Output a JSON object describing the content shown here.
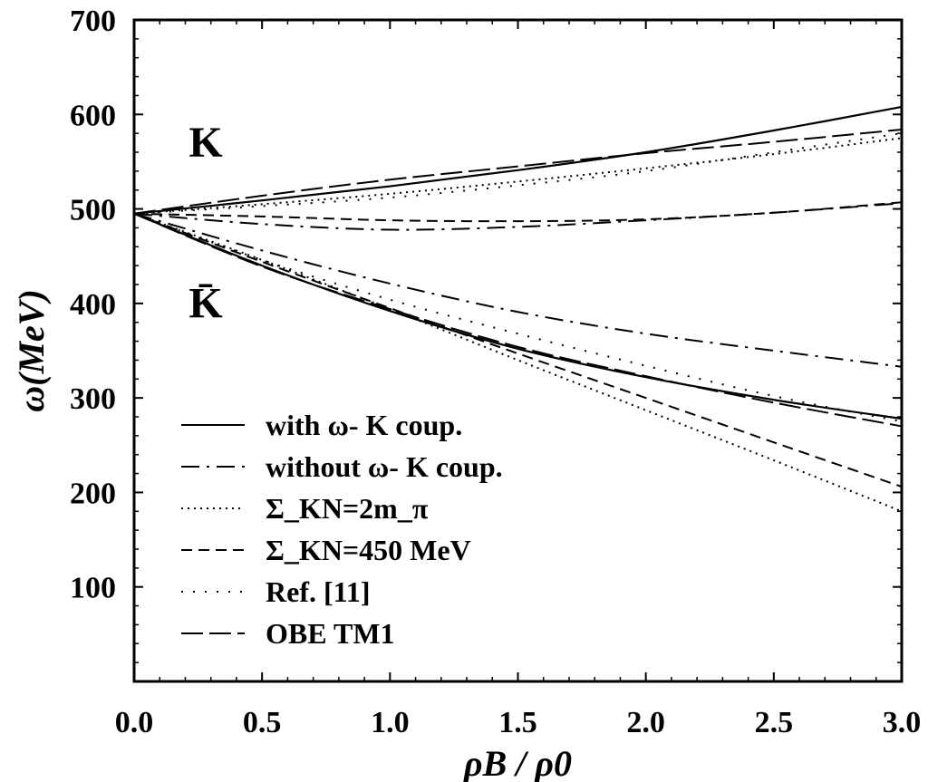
{
  "chart_data": {
    "type": "line",
    "xlabel": "ρB / ρ0",
    "ylabel": "ω(MeV)",
    "xlim": [
      0.0,
      3.0
    ],
    "ylim": [
      0,
      700
    ],
    "xticks": [
      0.0,
      0.5,
      1.0,
      1.5,
      2.0,
      2.5,
      3.0
    ],
    "xtick_labels": [
      "0.0",
      "0.5",
      "1.0",
      "1.5",
      "2.0",
      "2.5",
      "3.0"
    ],
    "yticks": [
      100,
      200,
      300,
      400,
      500,
      600,
      700
    ],
    "ytick_labels": [
      "100",
      "200",
      "300",
      "400",
      "500",
      "600",
      "700"
    ],
    "grid": false,
    "legend_position": "bottom-left",
    "annotations": [
      {
        "text": "K",
        "x": 0.28,
        "y": 555
      },
      {
        "text": "K̄",
        "x": 0.28,
        "y": 385
      }
    ],
    "series": [
      {
        "name": "with ω- K coup.",
        "style": "solid",
        "x": [
          0,
          0.5,
          1.0,
          1.5,
          2.0,
          2.5,
          3.0
        ],
        "K": [
          495,
          509,
          524,
          541,
          560,
          583,
          608
        ],
        "Kbar": [
          495,
          440,
          392,
          352,
          322,
          298,
          278
        ]
      },
      {
        "name": "without ω- K coup.",
        "style": "dashdot",
        "x": [
          0,
          0.5,
          1.0,
          1.5,
          2.0,
          2.5,
          3.0
        ],
        "K": [
          495,
          484,
          478,
          481,
          488,
          496,
          506
        ],
        "Kbar": [
          495,
          456,
          421,
          391,
          368,
          350,
          333
        ]
      },
      {
        "name": "Σ_KN=2m_π",
        "style": "dotted",
        "x": [
          0,
          0.5,
          1.0,
          1.5,
          2.0,
          2.5,
          3.0
        ],
        "K": [
          495,
          505,
          516,
          529,
          543,
          558,
          575
        ],
        "Kbar": [
          495,
          446,
          394,
          340,
          287,
          234,
          180
        ]
      },
      {
        "name": "Σ_KN=450 MeV",
        "style": "dashed",
        "x": [
          0,
          0.5,
          1.0,
          1.5,
          2.0,
          2.5,
          3.0
        ],
        "K": [
          495,
          492,
          488,
          487,
          489,
          496,
          507
        ],
        "Kbar": [
          495,
          444,
          395,
          347,
          300,
          253,
          206
        ]
      },
      {
        "name": "Ref. [11]",
        "style": "sparse-dotted",
        "x": [
          0,
          0.5,
          1.0,
          1.5,
          2.0,
          2.5,
          3.0
        ],
        "K": [
          495,
          503,
          512,
          525,
          540,
          560,
          580
        ],
        "Kbar": [
          495,
          446,
          404,
          368,
          334,
          302,
          275
        ]
      },
      {
        "name": "OBE TM1",
        "style": "longdash",
        "x": [
          0,
          0.5,
          1.0,
          1.5,
          2.0,
          2.5,
          3.0
        ],
        "K": [
          495,
          514,
          531,
          545,
          559,
          571,
          584
        ],
        "Kbar": [
          495,
          439,
          394,
          354,
          323,
          295,
          270
        ]
      }
    ]
  }
}
